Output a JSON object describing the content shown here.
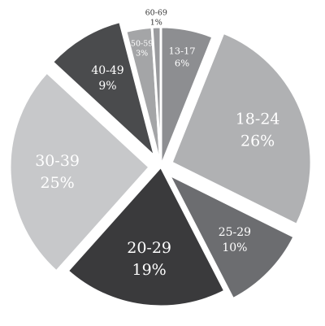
{
  "chart_data": {
    "type": "pie",
    "start_angle_deg": 0,
    "direction": "clockwise",
    "slices": [
      {
        "label": "13-17",
        "value": 6,
        "value_label": "6%",
        "color": "#8d8e91",
        "exploded": false,
        "text_color": "#ffffff",
        "label_size": "small"
      },
      {
        "label": "18-24",
        "value": 26,
        "value_label": "26%",
        "color": "#b0b1b3",
        "exploded": true,
        "text_color": "#ffffff",
        "label_size": "large"
      },
      {
        "label": "25-29",
        "value": 10,
        "value_label": "10%",
        "color": "#6c6d70",
        "exploded": true,
        "text_color": "#ffffff",
        "label_size": "medium"
      },
      {
        "label": "20-29",
        "value": 19,
        "value_label": "19%",
        "color": "#3a3a3c",
        "exploded": false,
        "text_color": "#ffffff",
        "label_size": "large"
      },
      {
        "label": "30-39",
        "value": 25,
        "value_label": "25%",
        "color": "#c7c8ca",
        "exploded": true,
        "text_color": "#ffffff",
        "label_size": "large"
      },
      {
        "label": "40-49",
        "value": 9,
        "value_label": "9%",
        "color": "#4a4b4d",
        "exploded": true,
        "text_color": "#ffffff",
        "label_size": "medium"
      },
      {
        "label": "50-59",
        "value": 3,
        "value_label": "3%",
        "color": "#a4a5a7",
        "exploded": false,
        "text_color": "#ffffff",
        "label_size": "tiny"
      },
      {
        "label": "60-69",
        "value": 1,
        "value_label": "1%",
        "color": "#9a9b9e",
        "exploded": false,
        "text_color": "#333333",
        "label_size": "tiny",
        "label_outside": true
      }
    ],
    "separator_color": "#ffffff"
  }
}
